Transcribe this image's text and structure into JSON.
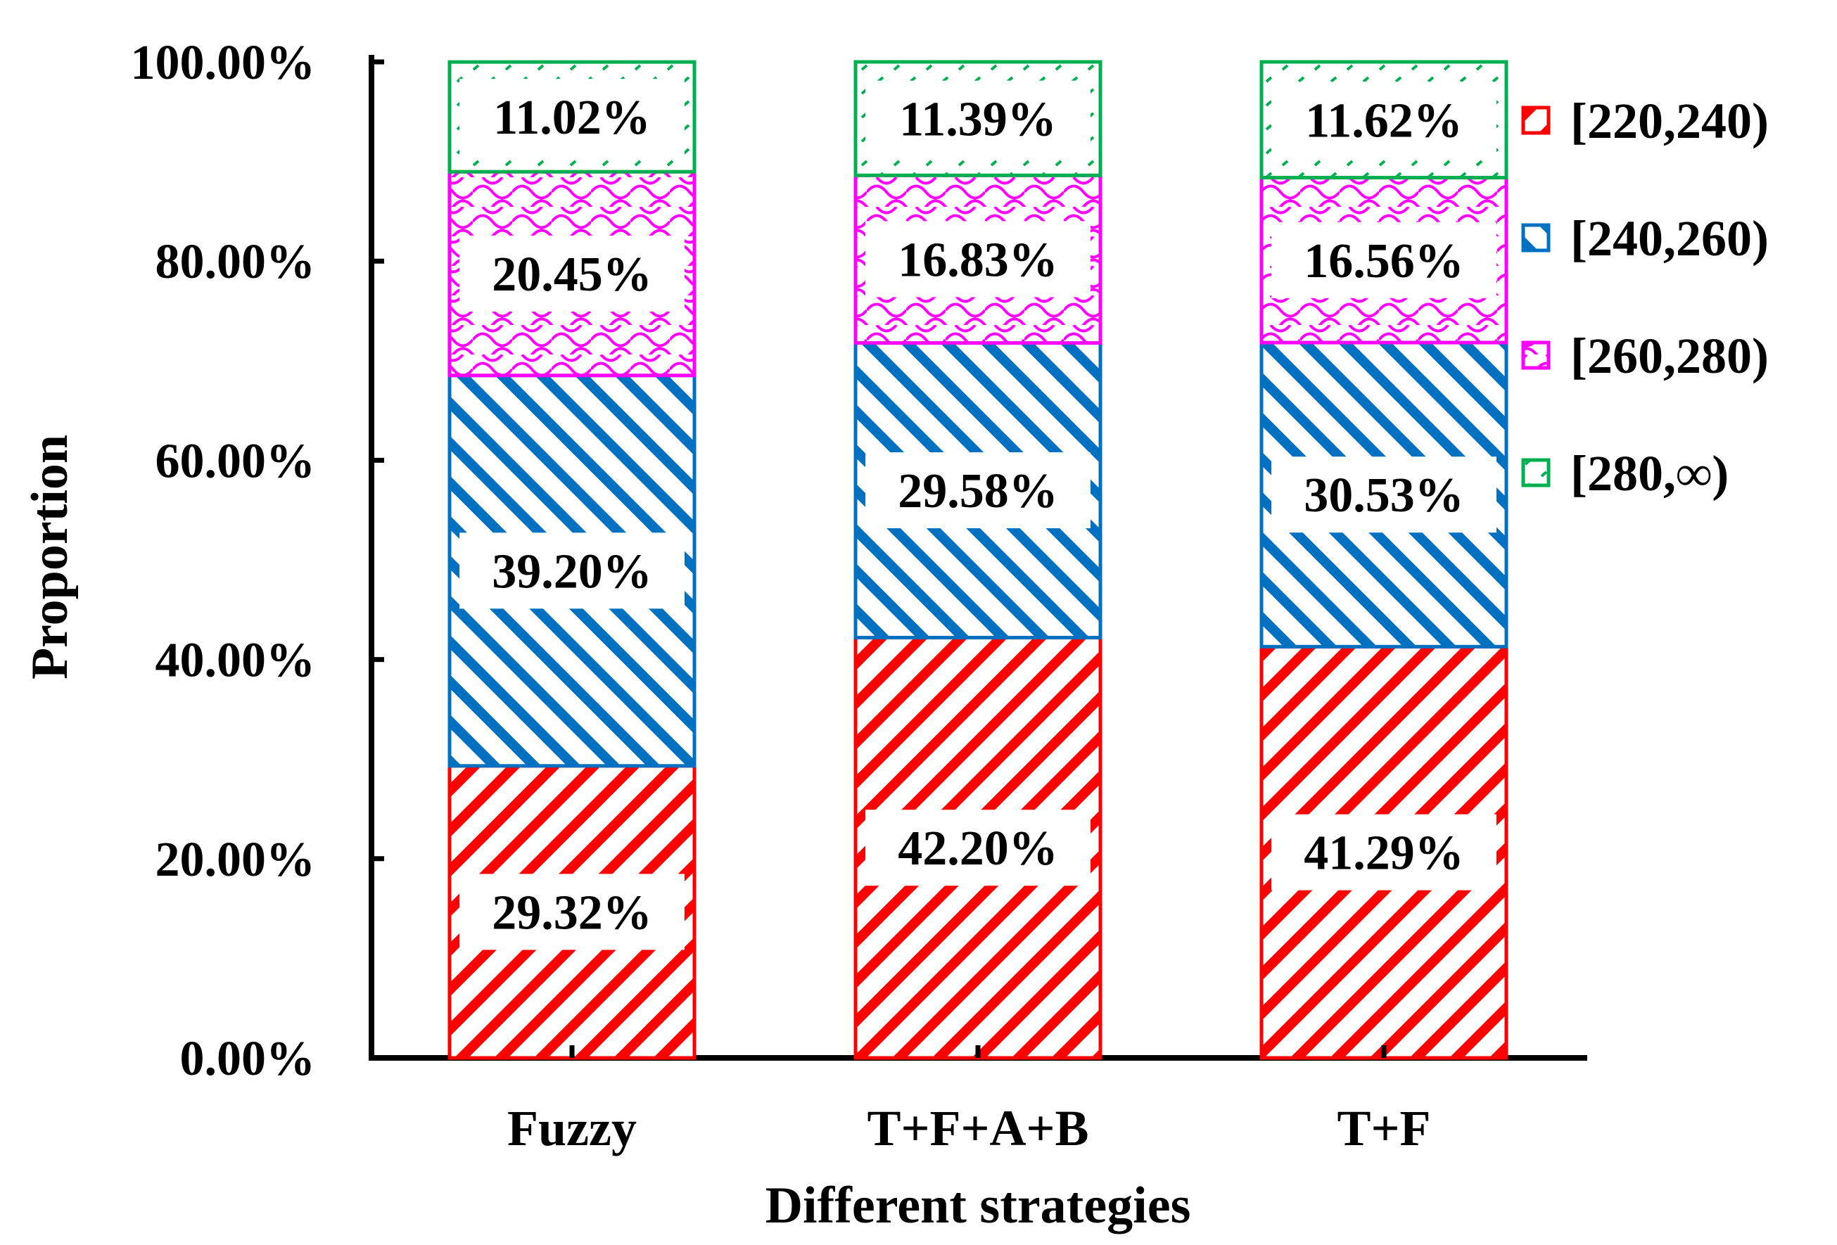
{
  "chart_data": {
    "type": "bar",
    "stacked": true,
    "title": "",
    "xlabel": "Different strategies",
    "ylabel": "Proportion",
    "ylim": [
      0,
      100
    ],
    "yticks": [
      "0.00%",
      "20.00%",
      "40.00%",
      "60.00%",
      "80.00%",
      "100.00%"
    ],
    "categories": [
      "Fuzzy",
      "T+F+A+B",
      "T+F"
    ],
    "series": [
      {
        "name": "[220,240)",
        "color": "#ff0000",
        "pattern": "wide-diagonal",
        "values": [
          29.32,
          42.2,
          41.29
        ],
        "labels": [
          "29.32%",
          "42.20%",
          "41.29%"
        ]
      },
      {
        "name": "[240,260)",
        "color": "#0070c0",
        "pattern": "wide-backdiagonal",
        "values": [
          39.2,
          29.58,
          30.53
        ],
        "labels": [
          "39.20%",
          "29.58%",
          "30.53%"
        ]
      },
      {
        "name": "[260,280)",
        "color": "#ff00ff",
        "pattern": "wave",
        "values": [
          20.45,
          16.83,
          16.56
        ],
        "labels": [
          "20.45%",
          "16.83%",
          "16.56%"
        ]
      },
      {
        "name": "[280,∞)",
        "color": "#00b050",
        "pattern": "small-confetti",
        "values": [
          11.02,
          11.39,
          11.62
        ],
        "labels": [
          "11.02%",
          "11.39%",
          "11.62%"
        ]
      }
    ],
    "legend_position": "right"
  }
}
